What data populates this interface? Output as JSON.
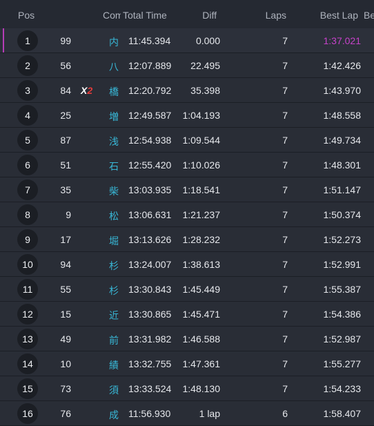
{
  "header": {
    "pos": "Pos",
    "competitor": "Competitor",
    "total_time": "Total Time",
    "diff": "Diff",
    "laps": "Laps",
    "best_lap": "Best Lap",
    "extra": "Best"
  },
  "colors": {
    "fastest_lap": "#c642c9",
    "name_accent": "#38b7d6",
    "multiplier_red": "#e23b3b",
    "leader_bar": "#b63cb8"
  },
  "rows": [
    {
      "pos": "1",
      "num": "99",
      "mark": "",
      "mult": "",
      "name": "内",
      "total": "11:45.394",
      "diff": "0.000",
      "laps": "7",
      "best": "1:37.021"
    },
    {
      "pos": "2",
      "num": "56",
      "mark": "",
      "mult": "",
      "name": "八",
      "total": "12:07.889",
      "diff": "22.495",
      "laps": "7",
      "best": "1:42.426"
    },
    {
      "pos": "3",
      "num": "84",
      "mark": "X",
      "mult": "2",
      "name": "橋",
      "total": "12:20.792",
      "diff": "35.398",
      "laps": "7",
      "best": "1:43.970"
    },
    {
      "pos": "4",
      "num": "25",
      "mark": "",
      "mult": "",
      "name": "増",
      "total": "12:49.587",
      "diff": "1:04.193",
      "laps": "7",
      "best": "1:48.558"
    },
    {
      "pos": "5",
      "num": "87",
      "mark": "",
      "mult": "",
      "name": "浅",
      "total": "12:54.938",
      "diff": "1:09.544",
      "laps": "7",
      "best": "1:49.734"
    },
    {
      "pos": "6",
      "num": "51",
      "mark": "",
      "mult": "",
      "name": "石",
      "total": "12:55.420",
      "diff": "1:10.026",
      "laps": "7",
      "best": "1:48.301"
    },
    {
      "pos": "7",
      "num": "35",
      "mark": "",
      "mult": "",
      "name": "柴",
      "total": "13:03.935",
      "diff": "1:18.541",
      "laps": "7",
      "best": "1:51.147"
    },
    {
      "pos": "8",
      "num": "9",
      "mark": "",
      "mult": "",
      "name": "松",
      "total": "13:06.631",
      "diff": "1:21.237",
      "laps": "7",
      "best": "1:50.374"
    },
    {
      "pos": "9",
      "num": "17",
      "mark": "",
      "mult": "",
      "name": "堀",
      "total": "13:13.626",
      "diff": "1:28.232",
      "laps": "7",
      "best": "1:52.273"
    },
    {
      "pos": "10",
      "num": "94",
      "mark": "",
      "mult": "",
      "name": "杉",
      "total": "13:24.007",
      "diff": "1:38.613",
      "laps": "7",
      "best": "1:52.991"
    },
    {
      "pos": "11",
      "num": "55",
      "mark": "",
      "mult": "",
      "name": "杉",
      "total": "13:30.843",
      "diff": "1:45.449",
      "laps": "7",
      "best": "1:55.387"
    },
    {
      "pos": "12",
      "num": "15",
      "mark": "",
      "mult": "",
      "name": "近",
      "total": "13:30.865",
      "diff": "1:45.471",
      "laps": "7",
      "best": "1:54.386"
    },
    {
      "pos": "13",
      "num": "49",
      "mark": "",
      "mult": "",
      "name": "前",
      "total": "13:31.982",
      "diff": "1:46.588",
      "laps": "7",
      "best": "1:52.987"
    },
    {
      "pos": "14",
      "num": "10",
      "mark": "",
      "mult": "",
      "name": "績",
      "total": "13:32.755",
      "diff": "1:47.361",
      "laps": "7",
      "best": "1:55.277"
    },
    {
      "pos": "15",
      "num": "73",
      "mark": "",
      "mult": "",
      "name": "須",
      "total": "13:33.524",
      "diff": "1:48.130",
      "laps": "7",
      "best": "1:54.233"
    },
    {
      "pos": "16",
      "num": "76",
      "mark": "",
      "mult": "",
      "name": "成",
      "total": "11:56.930",
      "diff": "1 lap",
      "laps": "6",
      "best": "1:58.407"
    }
  ]
}
